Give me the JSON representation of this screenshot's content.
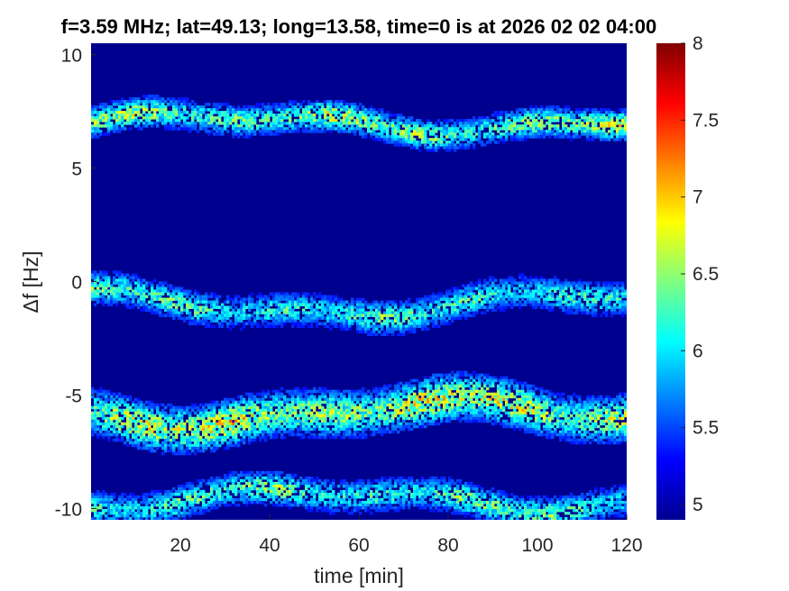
{
  "chart_data": {
    "type": "heatmap",
    "title": "f=3.59 MHz;  lat=49.13; long=13.58, time=0 is at 2026 02 02 04:00",
    "xlabel": "time [min]",
    "ylabel": "Δf [Hz]",
    "xlim": [
      0,
      120
    ],
    "ylim": [
      -10.5,
      10.5
    ],
    "xticks": [
      20,
      40,
      60,
      80,
      100,
      120
    ],
    "yticks": [
      10,
      5,
      0,
      -5,
      -10
    ],
    "xtick_labels": [
      "20",
      "40",
      "60",
      "80",
      "100",
      "120"
    ],
    "ytick_labels": [
      "10",
      "5",
      "0",
      "-5",
      "-10"
    ],
    "colorbar": {
      "colormap": "jet",
      "range": [
        4.9,
        8
      ],
      "ticks": [
        5,
        5.5,
        6,
        6.5,
        7,
        7.5,
        8
      ],
      "tick_labels": [
        "5",
        "5.5",
        "6",
        "6.5",
        "7",
        "7.5",
        "8"
      ]
    },
    "background_level": 4.9,
    "bands": [
      {
        "center_df": 7.0,
        "width_df": 1.3,
        "peak_level": 7.3,
        "drift": 0.35
      },
      {
        "center_df": -1.0,
        "width_df": 1.4,
        "peak_level": 6.9,
        "drift": 0.5
      },
      {
        "center_df": -5.8,
        "width_df": 2.0,
        "peak_level": 7.6,
        "drift": 0.5
      },
      {
        "center_df": -9.6,
        "width_df": 1.4,
        "peak_level": 7.0,
        "drift": 0.4
      }
    ]
  },
  "colors": {
    "background": "#ffffff",
    "axis": "#262626",
    "plot_background": "#00008f"
  }
}
